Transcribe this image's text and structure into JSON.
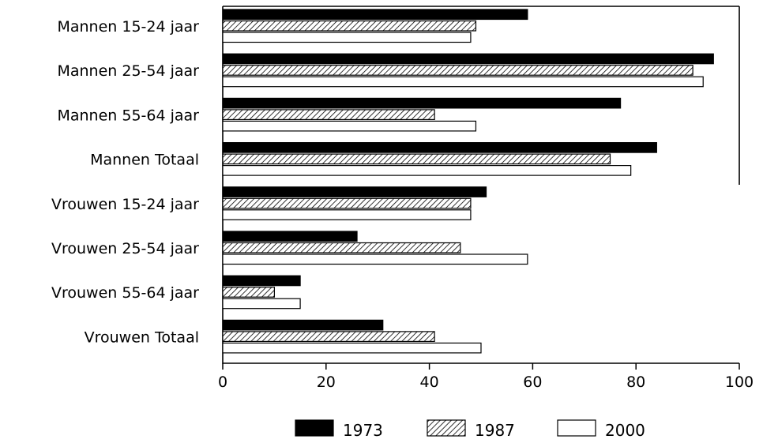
{
  "chart_data": {
    "type": "bar",
    "orientation": "horizontal",
    "categories": [
      "Mannen 15-24 jaar",
      "Mannen 25-54 jaar",
      "Mannen 55-64 jaar",
      "Mannen Totaal",
      "Vrouwen 15-24 jaar",
      "Vrouwen 25-54 jaar",
      "Vrouwen 55-64 jaar",
      "Vrouwen Totaal"
    ],
    "series": [
      {
        "name": "1973",
        "fill": "solid-black",
        "values": [
          59,
          95,
          77,
          84,
          51,
          26,
          15,
          31
        ]
      },
      {
        "name": "1987",
        "fill": "diagonal-hatch",
        "values": [
          49,
          91,
          41,
          75,
          48,
          46,
          10,
          41
        ]
      },
      {
        "name": "2000",
        "fill": "white",
        "values": [
          48,
          93,
          49,
          79,
          48,
          59,
          15,
          50
        ]
      }
    ],
    "xlim": [
      0,
      100
    ],
    "xticks": [
      0,
      20,
      40,
      60,
      80,
      100
    ],
    "xlabel": "",
    "ylabel": "",
    "title": "",
    "grid": false,
    "legend_position": "bottom-center",
    "colors": {
      "bar_fill_1973": "#000000",
      "bar_fill_2000": "#ffffff",
      "stroke": "#000000"
    }
  }
}
